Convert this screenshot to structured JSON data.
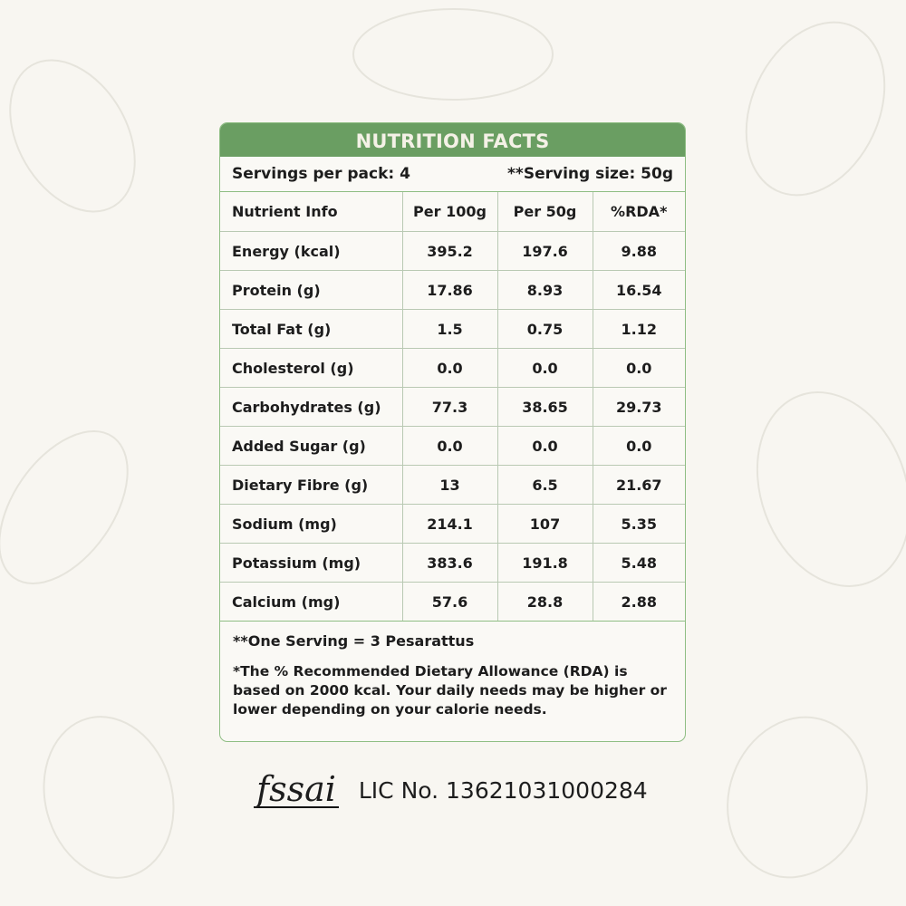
{
  "title": "NUTRITION FACTS",
  "servings_per_pack": "Servings per pack: 4",
  "serving_size": "**Serving size: 50g",
  "headers": [
    "Nutrient Info",
    "Per 100g",
    "Per 50g",
    "%RDA*"
  ],
  "rows": [
    [
      "Energy (kcal)",
      "395.2",
      "197.6",
      "9.88"
    ],
    [
      "Protein (g)",
      "17.86",
      "8.93",
      "16.54"
    ],
    [
      "Total Fat (g)",
      "1.5",
      "0.75",
      "1.12"
    ],
    [
      "Cholesterol (g)",
      "0.0",
      "0.0",
      "0.0"
    ],
    [
      "Carbohydrates (g)",
      "77.3",
      "38.65",
      "29.73"
    ],
    [
      "Added Sugar (g)",
      "0.0",
      "0.0",
      "0.0"
    ],
    [
      "Dietary Fibre (g)",
      "13",
      "6.5",
      "21.67"
    ],
    [
      "Sodium (mg)",
      "214.1",
      "107",
      "5.35"
    ],
    [
      "Potassium (mg)",
      "383.6",
      "191.8",
      "5.48"
    ],
    [
      "Calcium (mg)",
      "57.6",
      "28.8",
      "2.88"
    ]
  ],
  "footnote_serving": "**One Serving = 3 Pesarattus",
  "footnote_rda": "*The % Recommended Dietary Allowance (RDA) is based on 2000 kcal. Your daily needs may be higher or lower depending on your calorie needs.",
  "logo_text": "fssai",
  "license": "LIC No. 13621031000284",
  "colors": {
    "header_green": "#6a9e62",
    "border_green": "#8fbe84",
    "background": "#f8f6f1"
  }
}
